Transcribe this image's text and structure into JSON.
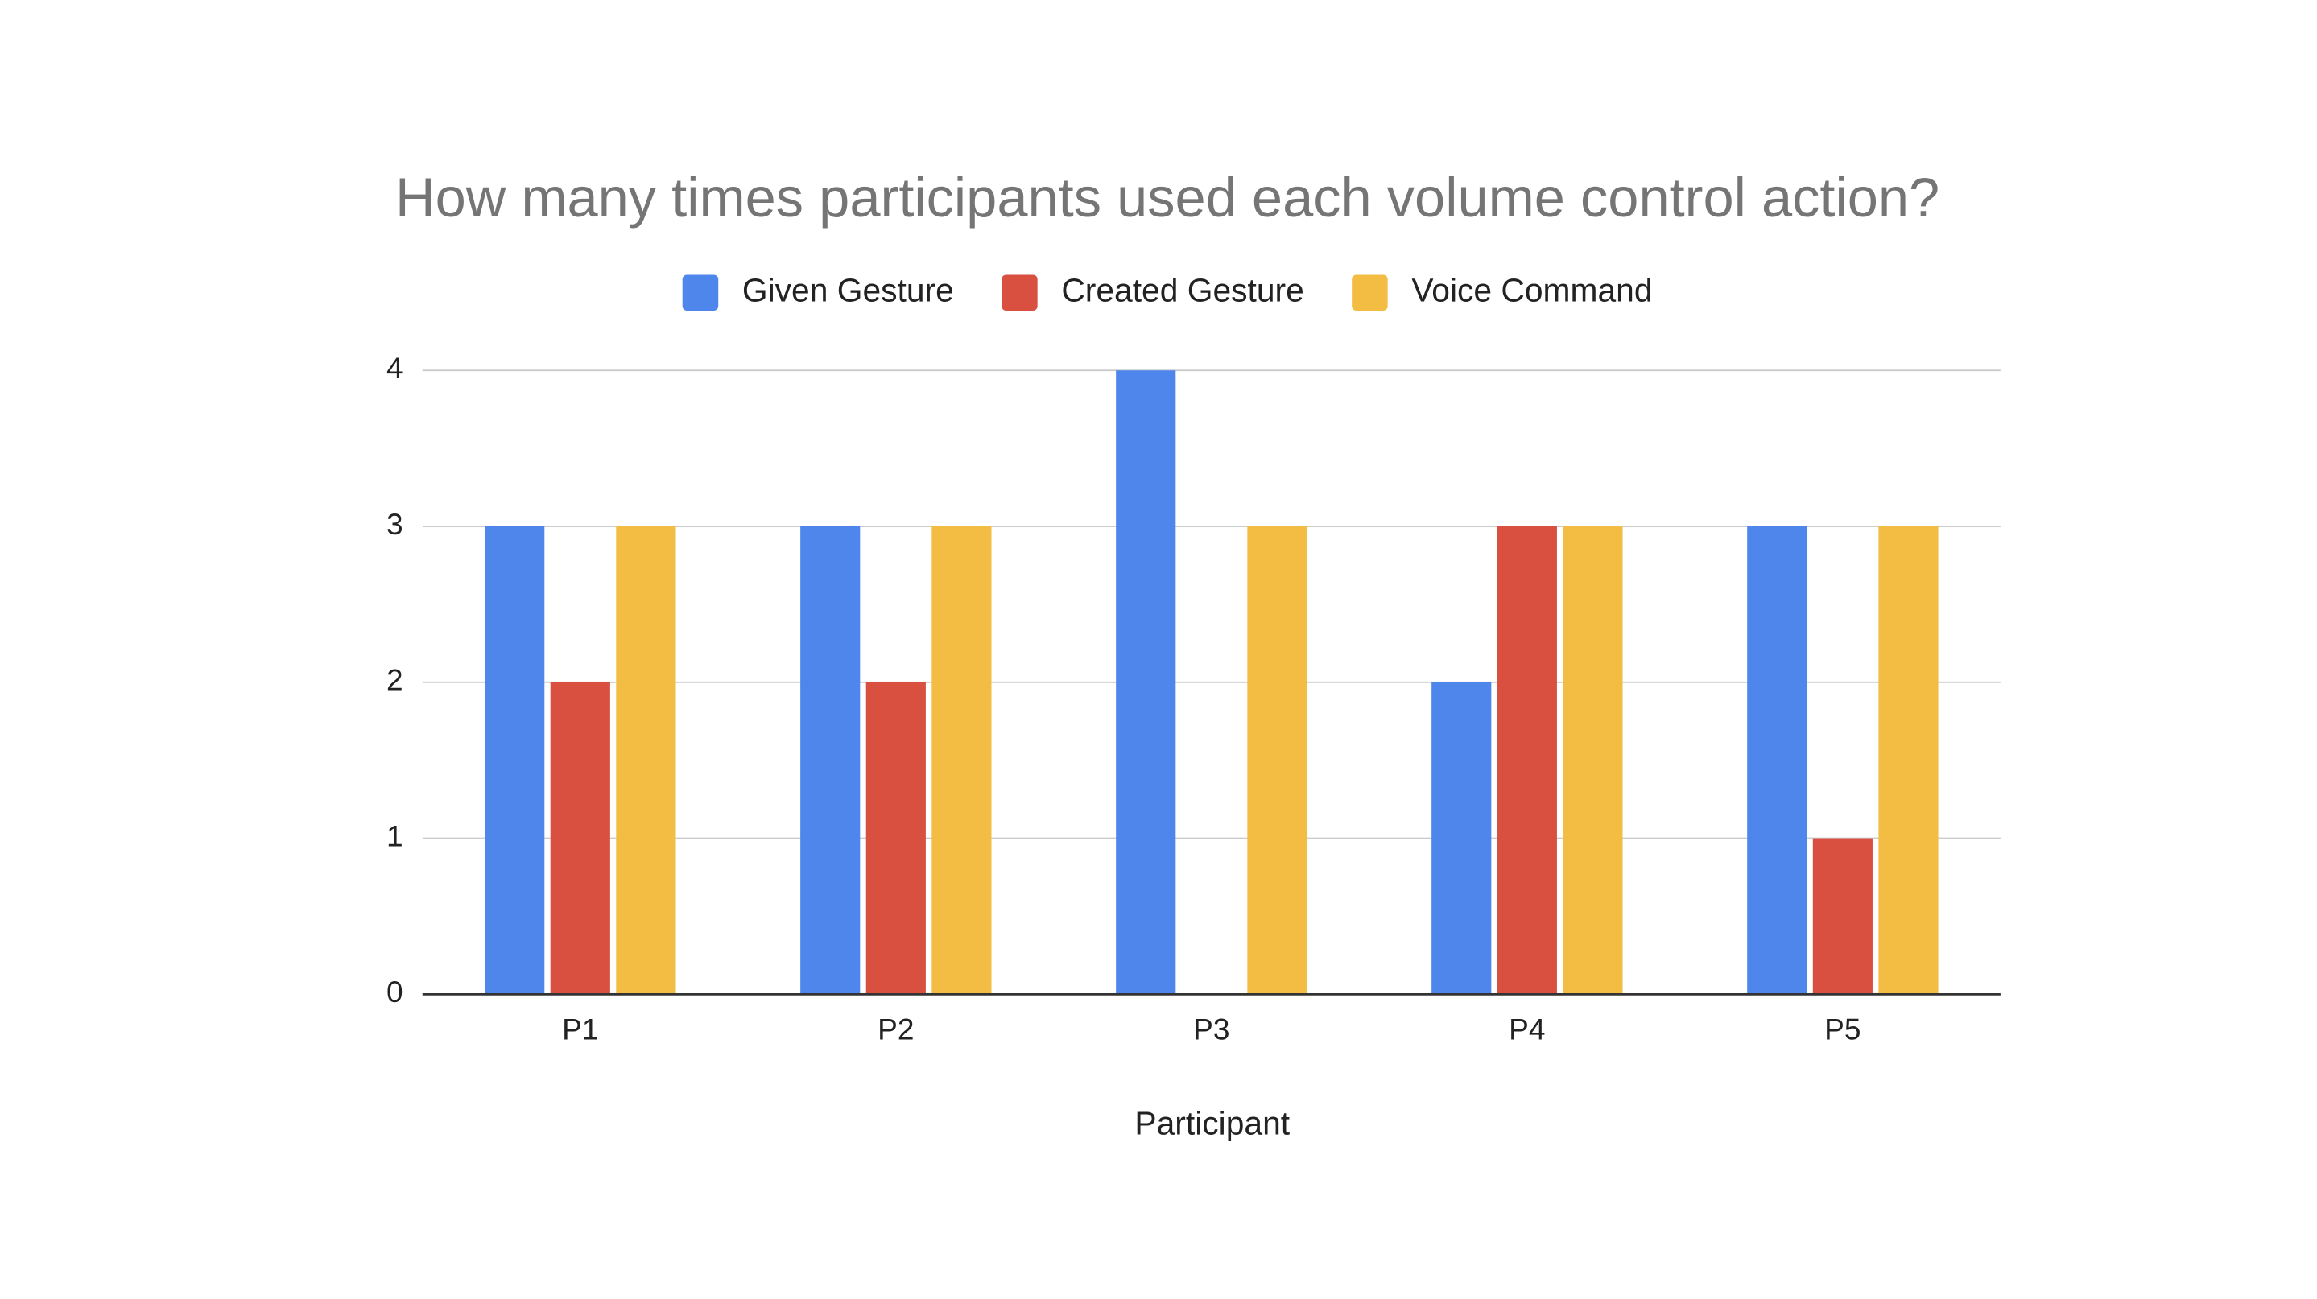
{
  "chart_data": {
    "type": "bar",
    "title": "How many times participants used each volume control action?",
    "x_label": "Participant",
    "categories": [
      "P1",
      "P2",
      "P3",
      "P4",
      "P5"
    ],
    "series": [
      {
        "name": "Given Gesture",
        "color": "#4f86ec",
        "values": [
          3,
          3,
          4,
          2,
          3
        ]
      },
      {
        "name": "Created Gesture",
        "color": "#d95040",
        "values": [
          2,
          2,
          0,
          3,
          1
        ]
      },
      {
        "name": "Voice Command",
        "color": "#f2bd42",
        "values": [
          3,
          3,
          3,
          3,
          3
        ]
      }
    ],
    "ylim": [
      0,
      4
    ],
    "yticks": [
      0,
      1,
      2,
      3,
      4
    ],
    "grid": true,
    "legend": "top"
  }
}
